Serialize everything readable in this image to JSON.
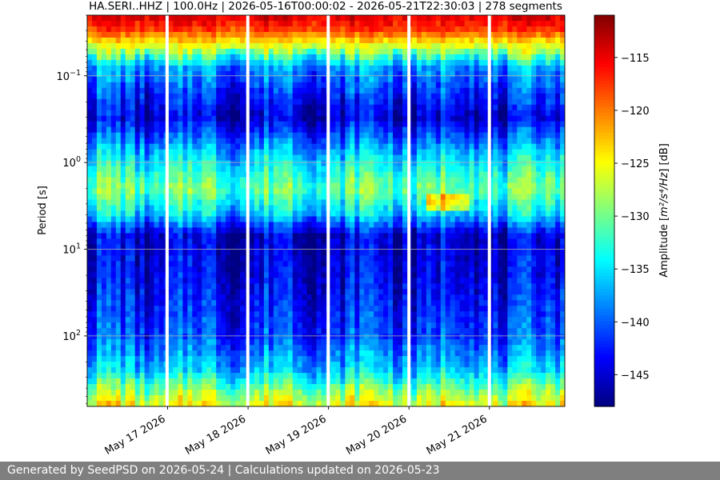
{
  "chart_data": {
    "type": "heatmap",
    "title": "HA.SERI..HHZ | 100.0Hz | 2026-05-16T00:00:02 - 2026-05-21T22:30:03 | 278 segments",
    "ylabel": "Period [s]",
    "yscale": "log",
    "yinvert": true,
    "ylim": [
      0.02,
      650
    ],
    "ytick_mantissa": "10",
    "yticks": [
      {
        "value": 0.1,
        "exponent": "−1"
      },
      {
        "value": 1,
        "exponent": "0"
      },
      {
        "value": 10,
        "exponent": "1"
      },
      {
        "value": 100,
        "exponent": "2"
      }
    ],
    "xlim": [
      "2026-05-16T00:00:02",
      "2026-05-21T22:30:03"
    ],
    "xticks": [
      {
        "value": "2026-05-17",
        "label": "May 17 2026"
      },
      {
        "value": "2026-05-18",
        "label": "May 18 2026"
      },
      {
        "value": "2026-05-19",
        "label": "May 19 2026"
      },
      {
        "value": "2026-05-20",
        "label": "May 20 2026"
      },
      {
        "value": "2026-05-21",
        "label": "May 21 2026"
      }
    ],
    "grid": true,
    "gaps": [
      "2026-05-16T23:50",
      "2026-05-17T23:55",
      "2026-05-18T23:55",
      "2026-05-20T00:00",
      "2026-05-21T00:00"
    ],
    "colorbar": {
      "label_prefix": "Amplitude [",
      "label_math": "m²/s⁴/Hz",
      "label_suffix": "] [dB]",
      "min": -148,
      "max": -111,
      "ticks": [
        -115,
        -120,
        -125,
        -130,
        -135,
        -140,
        -145
      ],
      "tick_labels": [
        "−115",
        "−120",
        "−125",
        "−130",
        "−135",
        "−140",
        "−145"
      ],
      "colormap": "jet"
    },
    "profile": [
      {
        "period": 0.02,
        "db": -114
      },
      {
        "period": 0.03,
        "db": -118
      },
      {
        "period": 0.05,
        "db": -128
      },
      {
        "period": 0.08,
        "db": -138
      },
      {
        "period": 0.3,
        "db": -145
      },
      {
        "period": 0.8,
        "db": -136
      },
      {
        "period": 2,
        "db": -130
      },
      {
        "period": 4,
        "db": -136
      },
      {
        "period": 7,
        "db": -145
      },
      {
        "period": 20,
        "db": -144
      },
      {
        "period": 100,
        "db": -141
      },
      {
        "period": 250,
        "db": -136
      },
      {
        "period": 400,
        "db": -130
      },
      {
        "period": 650,
        "db": -125
      }
    ]
  },
  "footer": {
    "text": "Generated by SeedPSD on 2026-05-24 | Calculations updated on 2026-05-23"
  }
}
